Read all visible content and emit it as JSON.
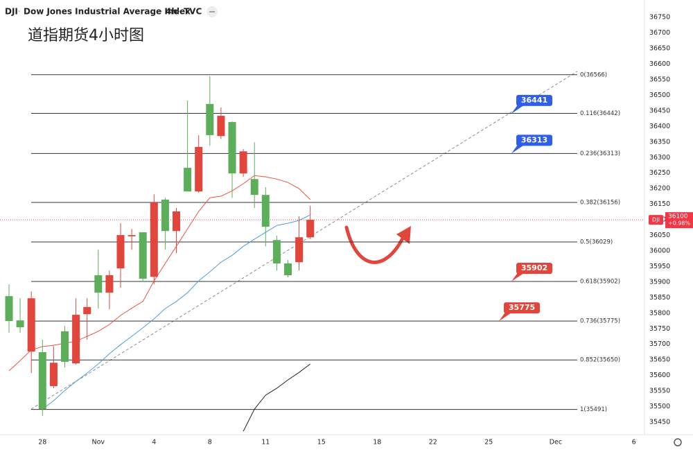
{
  "chart_data": {
    "type": "candlestick",
    "symbol": "DJI",
    "name": "Dow Jones Industrial Average Index",
    "interval": "4h",
    "source": "TVC",
    "title": "道指期货4小时图",
    "categories": [
      null,
      null,
      null,
      "28",
      null,
      null,
      null,
      null,
      "Nov",
      null,
      null,
      null,
      null,
      "4",
      null,
      null,
      null,
      null,
      "8",
      null,
      null,
      null,
      null,
      "11",
      null,
      null,
      null,
      null,
      "15",
      null,
      null,
      null,
      null,
      "18",
      null,
      null,
      null,
      null,
      "22",
      null,
      null,
      null,
      null,
      "25",
      null,
      null,
      null,
      null,
      null,
      "Dec",
      null,
      null,
      null,
      null,
      null,
      null,
      "6",
      null
    ],
    "open": [
      35775,
      35755,
      35848,
      35492,
      35641,
      35644,
      35795,
      35820,
      35866,
      35922,
      36051,
      36051,
      35911,
      36156,
      36064,
      36127,
      36191,
      36334,
      36372,
      36434,
      36249,
      36320,
      36180,
      36078,
      35960,
      35922,
      36044,
      36100,
      null,
      null,
      null,
      null,
      null,
      null,
      null,
      null,
      null,
      null,
      null,
      null,
      null,
      null,
      null,
      null,
      null,
      null,
      null,
      null,
      null,
      null,
      null,
      null,
      null,
      null,
      null,
      null,
      null,
      null
    ],
    "high": [
      35893,
      35848,
      35870,
      35715,
      35693,
      35759,
      35848,
      35848,
      36004,
      35937,
      36089,
      36071,
      36060,
      36182,
      36171,
      36138,
      36483,
      36372,
      36561,
      36461,
      36416,
      36327,
      36349,
      36205,
      36049,
      35971,
      36111,
      36145,
      null,
      null,
      null,
      null,
      null,
      null,
      null,
      null,
      null,
      null,
      null,
      null,
      null,
      null,
      null,
      null,
      null,
      null,
      null,
      null,
      null,
      null,
      null,
      null,
      null,
      null,
      null,
      null,
      null,
      null
    ],
    "low": [
      35737,
      35737,
      35608,
      35470,
      35559,
      35626,
      35635,
      35715,
      35815,
      35813,
      35882,
      36004,
      35904,
      35893,
      36004,
      35993,
      36191,
      36187,
      36338,
      36360,
      36171,
      36238,
      36138,
      36015,
      35937,
      35915,
      35937,
      36038,
      null,
      null,
      null,
      null,
      null,
      null,
      null,
      null,
      null,
      null,
      null,
      null,
      null,
      null,
      null,
      null,
      null,
      null,
      null,
      null,
      null,
      null,
      null,
      null,
      null,
      null,
      null,
      null,
      null,
      null
    ],
    "close": [
      35855,
      35777,
      35677,
      35675,
      35566,
      35742,
      35639,
      35797,
      35922,
      35866,
      35944,
      36047,
      36060,
      35917,
      36165,
      36064,
      36267,
      36191,
      36472,
      36369,
      36414,
      36249,
      36231,
      36180,
      36035,
      35960,
      35964,
      36044,
      null,
      null,
      null,
      null,
      null,
      null,
      null,
      null,
      null,
      null,
      null,
      null,
      null,
      null,
      null,
      null,
      null,
      null,
      null,
      null,
      null,
      null,
      null,
      null,
      null,
      null,
      null,
      null,
      null,
      null
    ],
    "up_color": "#5cae5a",
    "down_color": "#e2453c",
    "lines": [
      {
        "color": "#e8553f",
        "values": [
          35615,
          35648,
          35682,
          35693,
          35697,
          35704,
          35710,
          35726,
          35742,
          35764,
          35793,
          35816,
          35838,
          35904,
          35960,
          36015,
          36071,
          36127,
          36171,
          36176,
          36193,
          36216,
          36242,
          36238,
          36231,
          36220,
          36200,
          36165,
          null,
          null,
          null,
          null,
          null,
          null,
          null,
          null,
          null,
          null,
          null,
          null,
          null,
          null,
          null,
          null,
          null,
          null,
          null,
          null,
          null,
          null,
          null,
          null,
          null,
          null,
          null,
          null,
          null,
          null
        ]
      },
      {
        "color": "#4a9fe0",
        "values": [
          null,
          null,
          null,
          35492,
          35519,
          35552,
          35581,
          35608,
          35637,
          35670,
          35699,
          35726,
          35753,
          35782,
          35815,
          35838,
          35866,
          35904,
          35933,
          35964,
          35986,
          36015,
          36038,
          36060,
          36082,
          36089,
          36098,
          36116,
          null,
          null,
          null,
          null,
          null,
          null,
          null,
          null,
          null,
          null,
          null,
          null,
          null,
          null,
          null,
          null,
          null,
          null,
          null,
          null,
          null,
          null,
          null,
          null,
          null,
          null,
          null,
          null,
          null,
          null
        ]
      },
      {
        "color": "#222222",
        "values": [
          null,
          null,
          null,
          null,
          null,
          null,
          null,
          null,
          null,
          null,
          null,
          null,
          null,
          null,
          null,
          null,
          null,
          null,
          null,
          null,
          null,
          35421,
          35492,
          35537,
          35559,
          35586,
          35610,
          35637,
          null,
          null,
          null,
          null,
          null,
          null,
          null,
          null,
          null,
          null,
          null,
          null,
          null,
          null,
          null,
          null,
          null,
          null,
          null,
          null,
          null,
          null,
          null,
          null,
          null,
          null,
          null,
          null,
          null,
          null
        ]
      }
    ],
    "fib_levels": [
      {
        "label": "0(36566)",
        "value": 36566
      },
      {
        "label": "0.116(36442)",
        "value": 36442
      },
      {
        "label": "0.236(36313)",
        "value": 36313
      },
      {
        "label": "0.382(36156)",
        "value": 36156
      },
      {
        "label": "0.5(36029)",
        "value": 36029
      },
      {
        "label": "0.618(35902)",
        "value": 35902
      },
      {
        "label": "0.736(35775)",
        "value": 35775
      },
      {
        "label": "0.852(35650)",
        "value": 35650
      },
      {
        "label": "1(35491)",
        "value": 35491
      }
    ],
    "callouts": [
      {
        "value": 36441,
        "color": "#2f5fe8"
      },
      {
        "value": 36313,
        "color": "#2f5fe8"
      },
      {
        "value": 35902,
        "color": "#e2453c"
      },
      {
        "value": 35775,
        "color": "#e2453c"
      }
    ],
    "last_price": 36100,
    "last_change": "+0.98%",
    "last_color": "#f23645",
    "ylim": [
      35410,
      36806
    ],
    "yticks": [
      35450,
      35500,
      35550,
      35600,
      35650,
      35700,
      35750,
      35800,
      35850,
      35900,
      35950,
      36000,
      36050,
      36100,
      36150,
      36200,
      36250,
      36300,
      36350,
      36400,
      36450,
      36500,
      36550,
      36600,
      36650,
      36700,
      36750
    ]
  }
}
